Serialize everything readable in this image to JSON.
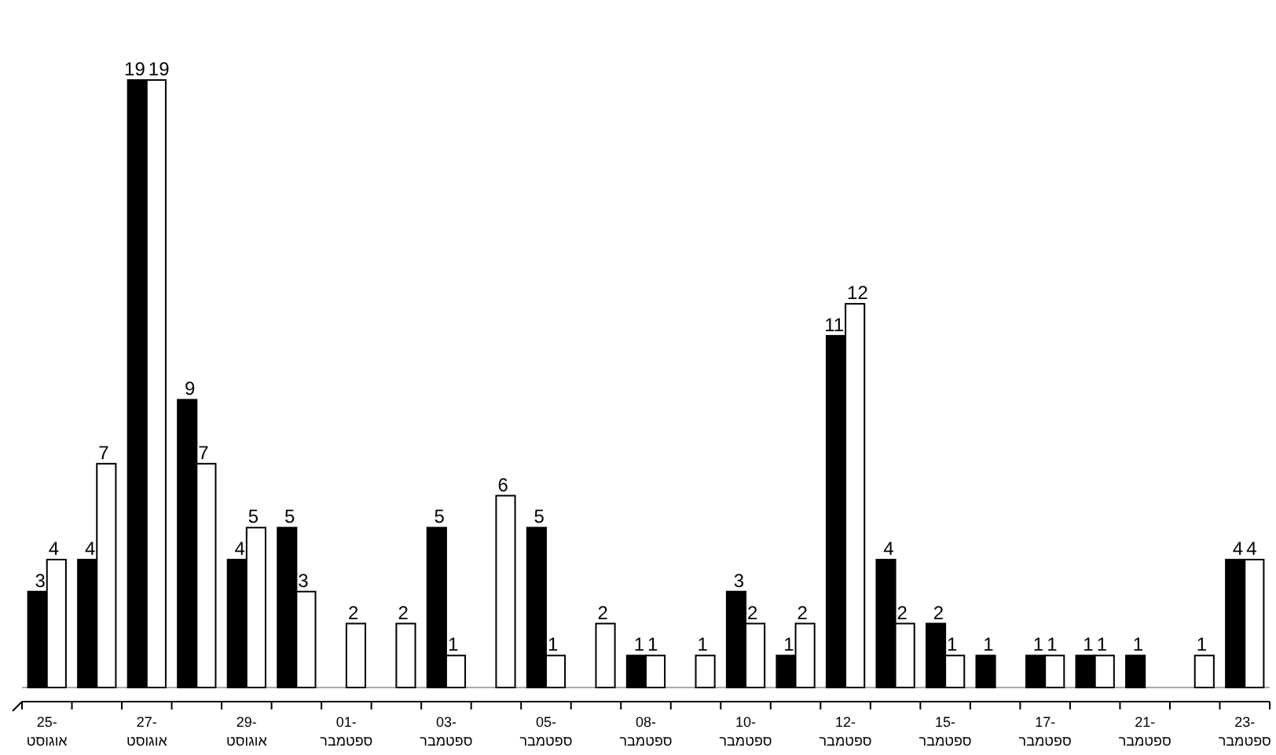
{
  "chart_data": {
    "type": "bar",
    "categories": [
      "25-\nאוגוסט",
      null,
      "27-\nאוגוסט",
      null,
      "29-\nאוגוסט",
      null,
      "01-\nספטמבר",
      null,
      "03-\nספטמבר",
      null,
      "05-\nספטמבר",
      null,
      "08-\nספטמבר",
      null,
      "10-\nספטמבר",
      null,
      "12-\nספטמבר",
      null,
      "15-\nספטמבר",
      null,
      "17-\nספטמבר",
      null,
      "21-\nספטמבר",
      null,
      "23-\nספטמבר"
    ],
    "series": [
      {
        "color": "#000000",
        "values": [
          3,
          4,
          19,
          9,
          4,
          5,
          null,
          null,
          5,
          null,
          5,
          null,
          1,
          null,
          3,
          1,
          11,
          4,
          2,
          1,
          1,
          1,
          1,
          null,
          4
        ]
      },
      {
        "color": "#ffffff",
        "values": [
          4,
          7,
          19,
          7,
          5,
          3,
          2,
          2,
          1,
          6,
          1,
          2,
          1,
          1,
          2,
          2,
          12,
          2,
          1,
          null,
          1,
          1,
          null,
          1,
          4
        ]
      }
    ],
    "data_labels": true
  }
}
